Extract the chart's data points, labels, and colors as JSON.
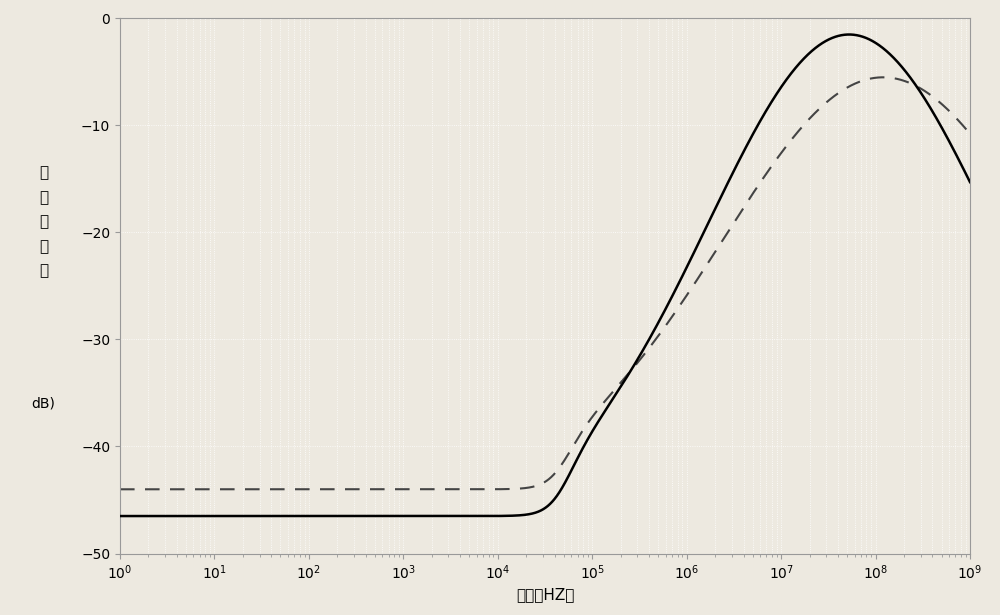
{
  "title": "",
  "xlabel": "频率（HZ）",
  "ylabel_chars": [
    "电",
    "源",
    "抑",
    "制",
    "比",
    "",
    "dB)"
  ],
  "xlim_log": [
    0,
    9
  ],
  "ylim": [
    -50,
    0
  ],
  "yticks": [
    0,
    -10,
    -20,
    -30,
    -40,
    -50
  ],
  "background_color": "#ede9e0",
  "grid_color": "#ffffff",
  "line1_color": "#000000",
  "line2_color": "#444444",
  "line1_flat": -46.5,
  "line2_flat": -44.0,
  "line1_peak": -1.5,
  "line2_peak": -5.5,
  "line1_peak_freq_log": 7.72,
  "line2_peak_freq_log": 8.08,
  "line1_fall_target": -16,
  "line2_fall_target": -14,
  "rise_start_log": 5.0,
  "figsize": [
    10.0,
    6.15
  ],
  "dpi": 100
}
